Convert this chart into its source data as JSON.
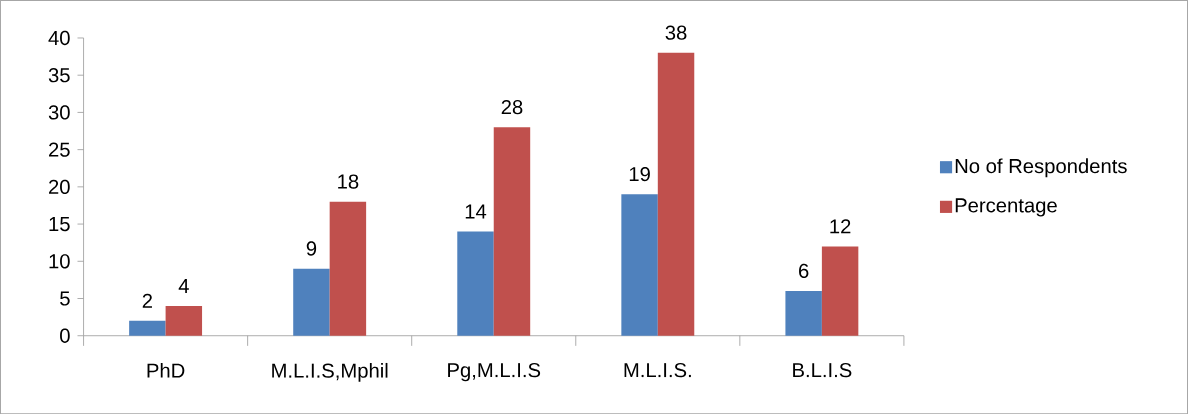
{
  "chart_data": {
    "type": "bar",
    "categories": [
      "PhD",
      "M.L.I.S,Mphil",
      "Pg,M.L.I.S",
      "M.L.I.S.",
      "B.L.I.S"
    ],
    "series": [
      {
        "name": "No of Respondents",
        "color": "#4f81bd",
        "values": [
          2,
          9,
          14,
          19,
          6
        ]
      },
      {
        "name": "Percentage",
        "color": "#c0504d",
        "values": [
          4,
          18,
          28,
          38,
          12
        ]
      }
    ],
    "ylim": [
      0,
      40
    ],
    "yticks": [
      0,
      5,
      10,
      15,
      20,
      25,
      30,
      35,
      40
    ],
    "data_labels": true,
    "legend": "right",
    "grid": false
  }
}
